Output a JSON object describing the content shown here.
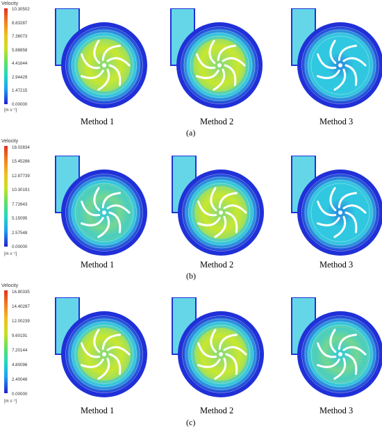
{
  "panels": [
    {
      "id": "a",
      "label": "(a)",
      "legend": {
        "title": "Velocity",
        "ticks": [
          "10.30502",
          "8.83287",
          "7.36073",
          "5.88858",
          "4.41644",
          "2.94429",
          "1.47215",
          "0.00000"
        ],
        "unit": "[m s⁻¹]"
      },
      "methods": [
        "Method 1",
        "Method 2",
        "Method 3"
      ],
      "fill_level": [
        0.45,
        0.6,
        0.15
      ]
    },
    {
      "id": "b",
      "label": "(b)",
      "legend": {
        "title": "Velocity",
        "ticks": [
          "18.02834",
          "15.45286",
          "12.87739",
          "10.30191",
          "7.72643",
          "5.15095",
          "2.57548",
          "0.00000"
        ],
        "unit": "[m s⁻¹]"
      },
      "methods": [
        "Method 1",
        "Method 2",
        "Method 3"
      ],
      "fill_level": [
        0.35,
        0.45,
        0.25
      ]
    },
    {
      "id": "c",
      "label": "(c)",
      "legend": {
        "title": "Velocity",
        "ticks": [
          "16.80335",
          "14.40287",
          "12.00239",
          "9.60191",
          "7.20144",
          "4.80096",
          "2.40048",
          "0.00000"
        ],
        "unit": "[m s⁻¹]"
      },
      "methods": [
        "Method 1",
        "Method 2",
        "Method 3"
      ],
      "fill_level": [
        0.5,
        0.6,
        0.4
      ]
    }
  ],
  "colors": {
    "low": "#2030d8",
    "mid": "#30c8e0",
    "high": "#c8e830",
    "streamline": "#f4f4f4"
  }
}
